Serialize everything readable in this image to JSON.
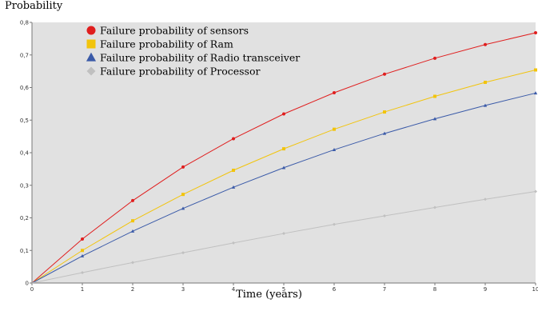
{
  "chart_data": {
    "type": "line",
    "ylabel": "Probability",
    "xlabel": "Time (years)",
    "xlim": [
      0,
      10
    ],
    "ylim": [
      0,
      0.8
    ],
    "x_ticks": [
      "0",
      "1",
      "2",
      "3",
      "4",
      "5",
      "6",
      "7",
      "8",
      "9",
      "10"
    ],
    "y_ticks": [
      "0",
      "0,1",
      "0,2",
      "0,3",
      "0,4",
      "0,5",
      "0,6",
      "0,7",
      "0,8"
    ],
    "x": [
      0,
      1,
      2,
      3,
      4,
      5,
      6,
      7,
      8,
      9,
      10
    ],
    "grid": false,
    "legend_position": "top-left",
    "series": [
      {
        "name": "Failure probability of sensors",
        "color": "#e01e1e",
        "marker": "circle",
        "values": [
          0,
          0.135,
          0.253,
          0.356,
          0.443,
          0.519,
          0.584,
          0.641,
          0.69,
          0.732,
          0.768
        ]
      },
      {
        "name": "Failure probability of Ram",
        "color": "#f2c40c",
        "marker": "square",
        "values": [
          0,
          0.1,
          0.191,
          0.272,
          0.346,
          0.412,
          0.472,
          0.525,
          0.573,
          0.616,
          0.654
        ]
      },
      {
        "name": "Failure probability of Radio transceiver",
        "color": "#3a5aa8",
        "marker": "triangle",
        "values": [
          0,
          0.083,
          0.159,
          0.229,
          0.294,
          0.354,
          0.409,
          0.459,
          0.504,
          0.545,
          0.583
        ]
      },
      {
        "name": "Failure probability of Processor",
        "color": "#c0c0c0",
        "marker": "diamond",
        "values": [
          0,
          0.032,
          0.063,
          0.093,
          0.123,
          0.152,
          0.18,
          0.206,
          0.232,
          0.257,
          0.281
        ]
      }
    ]
  }
}
